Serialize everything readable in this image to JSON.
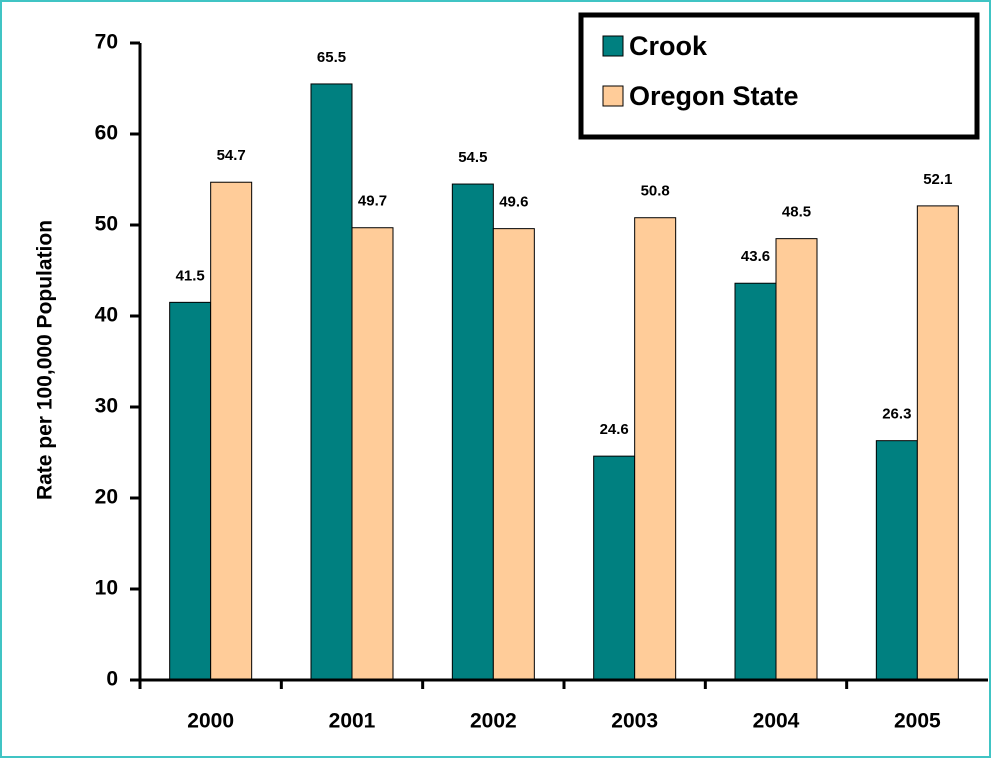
{
  "chart_data": {
    "type": "bar",
    "y_label": "Rate per 100,000 Population",
    "categories": [
      "2000",
      "2001",
      "2002",
      "2003",
      "2004",
      "2005"
    ],
    "series": [
      {
        "name": "Crook",
        "color": "#008080",
        "values": [
          41.5,
          65.5,
          54.5,
          24.6,
          43.6,
          26.3
        ]
      },
      {
        "name": "Oregon State",
        "color": "#FFCC99",
        "values": [
          54.7,
          49.7,
          49.6,
          50.8,
          48.5,
          52.1
        ]
      }
    ],
    "ylim": [
      0,
      70
    ],
    "yticks": [
      0,
      10,
      20,
      30,
      40,
      50,
      60,
      70
    ],
    "legend": "upper right"
  }
}
